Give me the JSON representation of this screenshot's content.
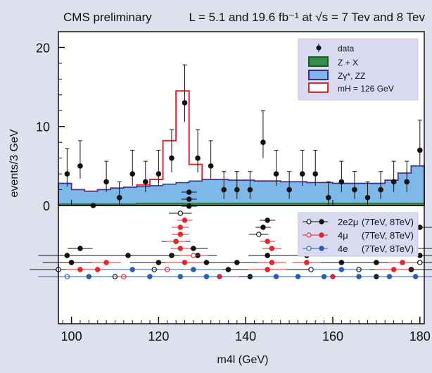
{
  "chart_data": [
    {
      "type": "bar",
      "header_left": "CMS preliminary",
      "header_right": "L = 5.1 and 19.6 fb⁻¹ at √s = 7 Tev and 8 Tev",
      "ylabel": "events/3 GeV",
      "xlim": [
        97,
        181
      ],
      "ylim": [
        0,
        22
      ],
      "yticks": [
        0,
        10,
        20
      ],
      "legend_position": "top-right",
      "legend": [
        {
          "label": "data",
          "kind": "marker"
        },
        {
          "label": "Z + X",
          "kind": "box",
          "color": "#3a8a4a"
        },
        {
          "label": "Zγ*, ZZ",
          "kind": "box",
          "color": "#7db8e8"
        },
        {
          "label": "mH = 126 GeV",
          "kind": "box",
          "color": "#e8232a"
        }
      ],
      "bin_edges": [
        97,
        100,
        103,
        106,
        109,
        112,
        115,
        118,
        121,
        124,
        127,
        130,
        133,
        136,
        139,
        142,
        145,
        148,
        151,
        154,
        157,
        160,
        163,
        166,
        169,
        172,
        175,
        178,
        181
      ],
      "series": [
        {
          "name": "Z + X",
          "color": "#3a8a4a",
          "values": [
            0.2,
            0.2,
            0.2,
            0.2,
            0.2,
            0.2,
            0.3,
            0.3,
            0.3,
            0.3,
            0.3,
            0.3,
            0.3,
            0.3,
            0.3,
            0.3,
            0.3,
            0.3,
            0.3,
            0.3,
            0.3,
            0.3,
            0.3,
            0.3,
            0.3,
            0.3,
            0.3,
            0.3
          ]
        },
        {
          "name": "Zγ*, ZZ",
          "color": "#7db8e8",
          "values": [
            2.8,
            2.0,
            1.8,
            2.0,
            2.2,
            2.3,
            2.4,
            2.5,
            2.7,
            2.9,
            3.1,
            3.3,
            3.3,
            3.2,
            3.2,
            3.1,
            3.1,
            3.0,
            3.0,
            2.9,
            2.9,
            2.8,
            2.8,
            2.8,
            2.8,
            3.2,
            4.1,
            5.0
          ]
        },
        {
          "name": "mH = 126 GeV",
          "color": "#e8232a",
          "values": [
            2.8,
            2.0,
            1.8,
            2.0,
            2.2,
            2.3,
            2.6,
            3.3,
            8.2,
            14.5,
            5.2,
            3.3,
            3.3,
            3.2,
            3.2,
            3.1,
            3.1,
            3.0,
            3.0,
            2.9,
            2.9,
            2.8,
            2.8,
            2.8,
            2.8,
            3.2,
            4.1,
            5.0
          ]
        }
      ],
      "data_points": [
        {
          "x": 99,
          "y": 4,
          "err": 3.2
        },
        {
          "x": 102,
          "y": 5,
          "err": 3.2
        },
        {
          "x": 105,
          "y": 0,
          "err": 0
        },
        {
          "x": 108,
          "y": 3,
          "err": 2.6
        },
        {
          "x": 111,
          "y": 1,
          "err": 2
        },
        {
          "x": 114,
          "y": 4,
          "err": 3
        },
        {
          "x": 117,
          "y": 3,
          "err": 2.6
        },
        {
          "x": 120,
          "y": 4,
          "err": 3
        },
        {
          "x": 123,
          "y": 6,
          "err": 3.6
        },
        {
          "x": 126,
          "y": 13,
          "err": 4.8
        },
        {
          "x": 129,
          "y": 6,
          "err": 3.6
        },
        {
          "x": 132,
          "y": 5,
          "err": 3.2
        },
        {
          "x": 135,
          "y": 2,
          "err": 2.3
        },
        {
          "x": 138,
          "y": 2,
          "err": 2.3
        },
        {
          "x": 141,
          "y": 2,
          "err": 2.3
        },
        {
          "x": 144,
          "y": 8,
          "err": 4
        },
        {
          "x": 147,
          "y": 4,
          "err": 3
        },
        {
          "x": 150,
          "y": 2,
          "err": 2.3
        },
        {
          "x": 153,
          "y": 4,
          "err": 3
        },
        {
          "x": 156,
          "y": 4,
          "err": 3
        },
        {
          "x": 159,
          "y": 1,
          "err": 2
        },
        {
          "x": 162,
          "y": 3,
          "err": 2.6
        },
        {
          "x": 165,
          "y": 2,
          "err": 2.3
        },
        {
          "x": 168,
          "y": 1,
          "err": 2
        },
        {
          "x": 171,
          "y": 2,
          "err": 2.3
        },
        {
          "x": 174,
          "y": 3,
          "err": 2.6
        },
        {
          "x": 177,
          "y": 3,
          "err": 2.6
        },
        {
          "x": 180,
          "y": 7,
          "err": 3.8
        }
      ]
    },
    {
      "type": "scatter",
      "xlabel": "m4l (GeV)",
      "xticks": [
        100,
        120,
        140,
        160,
        180
      ],
      "legend_position": "top-right",
      "legend": [
        {
          "label": "2e2μ",
          "energies": "(7TeV, 8TeV)",
          "color": "#111111"
        },
        {
          "label": "4μ",
          "energies": "(7TeV, 8TeV)",
          "color": "#e8232a"
        },
        {
          "label": "4e",
          "energies": "(7TeV, 8TeV)",
          "color": "#2a5fb0"
        }
      ],
      "series": [
        {
          "name": "2e2μ",
          "color": "#111111",
          "events": [
            {
              "m": 127,
              "err": 0.8,
              "row": 10,
              "o": false
            },
            {
              "m": 127,
              "err": 0.8,
              "row": 9,
              "o": false
            },
            {
              "m": 127,
              "err": 0.8,
              "row": 8,
              "o": false
            },
            {
              "m": 125,
              "err": 1.2,
              "row": 7,
              "o": true
            },
            {
              "m": 145,
              "err": 0.8,
              "row": 6,
              "o": false
            },
            {
              "m": 144,
              "err": 0.8,
              "row": 5,
              "o": false
            },
            {
              "m": 143,
              "err": 1,
              "row": 4,
              "o": true
            },
            {
              "m": 124,
              "err": 1.5,
              "row": 3,
              "o": false
            },
            {
              "m": 180,
              "err": 1.5,
              "row": 5,
              "o": false
            },
            {
              "m": 102,
              "err": 1.3,
              "row": 2,
              "o": false
            },
            {
              "m": 128,
              "err": 1.5,
              "row": 2,
              "o": false
            },
            {
              "m": 177,
              "err": 3,
              "row": 2,
              "o": false
            },
            {
              "m": 99,
              "err": 3,
              "row": 1,
              "o": false
            },
            {
              "m": 113,
              "err": 5,
              "row": 1,
              "o": false
            },
            {
              "m": 123,
              "err": 1.5,
              "row": 1,
              "o": false
            },
            {
              "m": 129,
              "err": 2,
              "row": 1,
              "o": false
            },
            {
              "m": 145,
              "err": 2,
              "row": 1,
              "o": false
            },
            {
              "m": 154,
              "err": 2.5,
              "row": 1,
              "o": false
            },
            {
              "m": 180,
              "err": 2.5,
              "row": 1,
              "o": false
            },
            {
              "m": 100,
              "err": 3,
              "row": 0,
              "o": false
            },
            {
              "m": 120,
              "err": 3,
              "row": 0,
              "o": false
            },
            {
              "m": 131,
              "err": 3,
              "row": 0,
              "o": false
            },
            {
              "m": 138,
              "err": 3,
              "row": 0,
              "o": false
            },
            {
              "m": 162,
              "err": 3,
              "row": 0,
              "o": false
            },
            {
              "m": 170,
              "err": 2.5,
              "row": 0,
              "o": false
            },
            {
              "m": 180,
              "err": 2.5,
              "row": 0,
              "o": true
            },
            {
              "m": 97,
              "err": 3,
              "row": -1,
              "o": true
            },
            {
              "m": 119,
              "err": 3,
              "row": -1,
              "o": true
            },
            {
              "m": 136,
              "err": 4,
              "row": -1,
              "o": false
            },
            {
              "m": 155,
              "err": 4,
              "row": -1,
              "o": true
            },
            {
              "m": 166,
              "err": 3,
              "row": -1,
              "o": true
            },
            {
              "m": 178,
              "err": 3,
              "row": -1,
              "o": false
            },
            {
              "m": 110,
              "err": 3,
              "row": -2,
              "o": true
            },
            {
              "m": 141,
              "err": 3,
              "row": -2,
              "o": false
            },
            {
              "m": 170,
              "err": 3,
              "row": -2,
              "o": false
            }
          ]
        },
        {
          "name": "4μ",
          "color": "#e8232a",
          "events": [
            {
              "m": 126,
              "err": 0.8,
              "row": 6,
              "o": false
            },
            {
              "m": 125,
              "err": 0.9,
              "row": 5,
              "o": false
            },
            {
              "m": 125,
              "err": 0.9,
              "row": 4,
              "o": false
            },
            {
              "m": 124,
              "err": 1,
              "row": 3,
              "o": false
            },
            {
              "m": 145,
              "err": 0.8,
              "row": 3,
              "o": false
            },
            {
              "m": 125,
              "err": 1,
              "row": 2,
              "o": false
            },
            {
              "m": 146,
              "err": 1,
              "row": 2,
              "o": false
            },
            {
              "m": 128,
              "err": 1.5,
              "row": 1,
              "o": true
            },
            {
              "m": 108,
              "err": 1.5,
              "row": 0,
              "o": false
            },
            {
              "m": 126,
              "err": 2,
              "row": 0,
              "o": false
            },
            {
              "m": 146,
              "err": 1.5,
              "row": 0,
              "o": false
            },
            {
              "m": 154,
              "err": 1.5,
              "row": 0,
              "o": false
            },
            {
              "m": 176,
              "err": 1.5,
              "row": 0,
              "o": false
            },
            {
              "m": 106,
              "err": 1.5,
              "row": -1,
              "o": false
            },
            {
              "m": 122,
              "err": 2.5,
              "row": -1,
              "o": true
            },
            {
              "m": 145,
              "err": 2,
              "row": -1,
              "o": false
            },
            {
              "m": 174,
              "err": 2,
              "row": -1,
              "o": false
            },
            {
              "m": 102,
              "err": 1.5,
              "row": -1,
              "o": false
            },
            {
              "m": 112,
              "err": 2,
              "row": -2,
              "o": true
            },
            {
              "m": 134,
              "err": 2,
              "row": -2,
              "o": false
            },
            {
              "m": 160,
              "err": 2,
              "row": -2,
              "o": false
            }
          ]
        },
        {
          "name": "4e",
          "color": "#2a5fb0",
          "events": [
            {
              "m": 99,
              "err": 3,
              "row": -2,
              "o": true
            },
            {
              "m": 104,
              "err": 3,
              "row": -2,
              "o": false
            },
            {
              "m": 118,
              "err": 3,
              "row": -2,
              "o": false
            },
            {
              "m": 125,
              "err": 3,
              "row": -2,
              "o": false
            },
            {
              "m": 131,
              "err": 3,
              "row": -2,
              "o": false
            },
            {
              "m": 147,
              "err": 3,
              "row": -2,
              "o": false
            },
            {
              "m": 152,
              "err": 3,
              "row": -2,
              "o": false
            },
            {
              "m": 158,
              "err": 3,
              "row": -2,
              "o": false
            },
            {
              "m": 166,
              "err": 3,
              "row": -2,
              "o": false
            },
            {
              "m": 173,
              "err": 3,
              "row": -2,
              "o": false
            },
            {
              "m": 179,
              "err": 3,
              "row": -2,
              "o": false
            },
            {
              "m": 114,
              "err": 3,
              "row": -1,
              "o": false
            },
            {
              "m": 128,
              "err": 3,
              "row": -1,
              "o": false
            },
            {
              "m": 162,
              "err": 3,
              "row": -1,
              "o": false
            }
          ]
        }
      ]
    }
  ]
}
